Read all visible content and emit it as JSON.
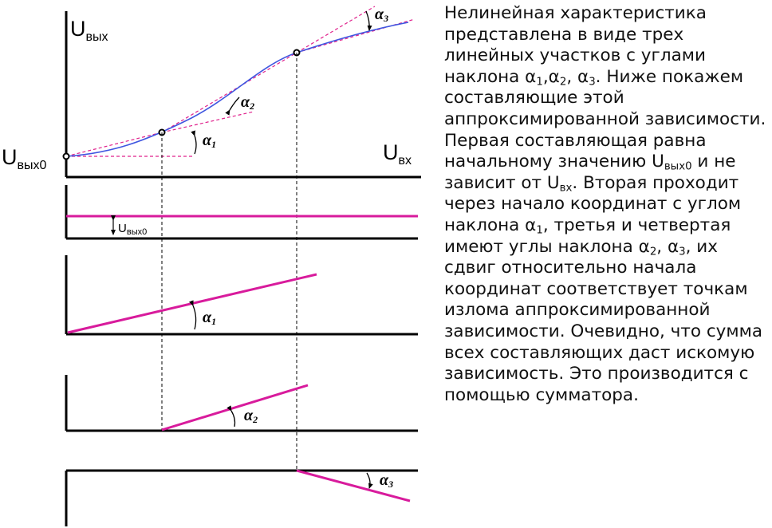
{
  "diagram": {
    "colors": {
      "curve": "#3f56e0",
      "approximation": "#e0208c",
      "component_lines": "#d81b9c",
      "axes": "#000000"
    },
    "labels": {
      "u_out": "U",
      "u_out_sub": "вых",
      "u_in": "U",
      "u_in_sub": "вх",
      "u_out0": "U",
      "u_out0_sub": "вых0",
      "offset": "U",
      "offset_sub": "вых0",
      "alpha1": "α",
      "alpha1_sub": "1",
      "alpha2": "α",
      "alpha2_sub": "2",
      "alpha3": "α",
      "alpha3_sub": "3",
      "p2_alpha": "α",
      "p2_alpha_sub": "1",
      "p3_alpha": "α",
      "p3_alpha_sub": "2",
      "p4_alpha": "α",
      "p4_alpha_sub": "3"
    }
  },
  "text": {
    "p1": "Нелинейная характеристика представлена в виде трех линейных участков с углами наклона α",
    "s1": "1",
    "p2": ",α",
    "s2": "2",
    "p3": ", α",
    "s3": "3",
    "p4": ". Ниже покажем составляющие этой аппроксимированной зависимости. Первая составляющая равна начальному значению U",
    "s4": "вых0",
    "p5": " и не зависит от U",
    "s5": "вх",
    "p6": ". Вторая проходит через начало координат с углом наклона α",
    "s6": "1",
    "p7": ", третья и четвертая имеют углы наклона α",
    "s7": "2",
    "p8": ", α",
    "s8": "3",
    "p9": ", их сдвиг относительно начала координат соответствует точкам излома аппроксимированной зависимости. Очевидно, что сумма всех составляющих даст искомую зависимость. Это производится с помощью сумматора."
  }
}
